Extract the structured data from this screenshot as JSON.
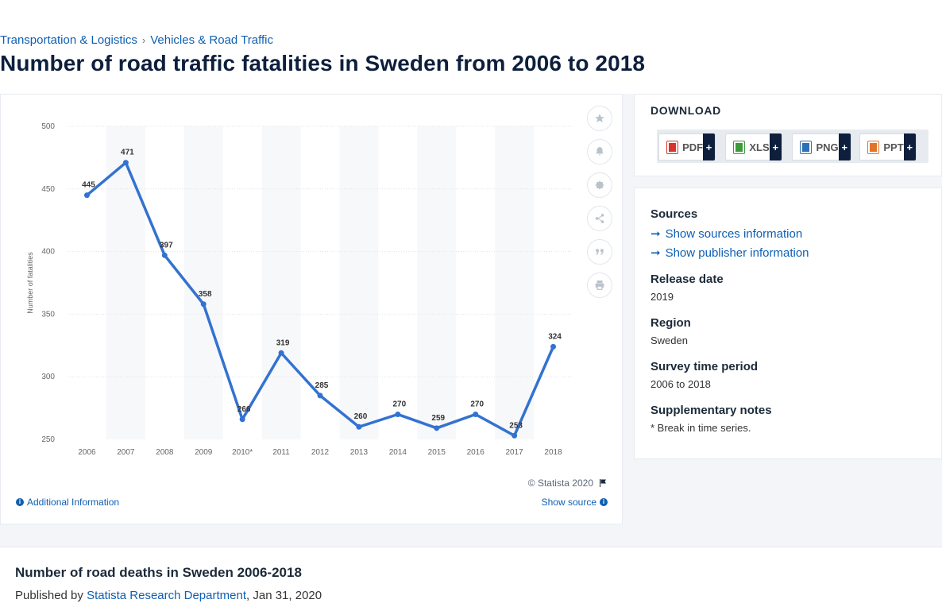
{
  "breadcrumb": {
    "items": [
      "Transportation & Logistics",
      "Vehicles & Road Traffic"
    ],
    "separator": "›"
  },
  "page_title": "Number of road traffic fatalities in Sweden from 2006 to 2018",
  "chart_data": {
    "type": "line",
    "title": "",
    "xlabel": "",
    "ylabel": "Number of fatalities",
    "categories": [
      "2006",
      "2007",
      "2008",
      "2009",
      "2010*",
      "2011",
      "2012",
      "2013",
      "2014",
      "2015",
      "2016",
      "2017",
      "2018"
    ],
    "series": [
      {
        "values": [
          445,
          471,
          397,
          358,
          266,
          319,
          285,
          260,
          270,
          259,
          270,
          253,
          324
        ]
      }
    ],
    "data_labels": [
      "445",
      "471",
      "397",
      "358",
      "266",
      "319",
      "285",
      "260",
      "270",
      "259",
      "270",
      "253",
      "324"
    ],
    "y_ticks": [
      "250",
      "300",
      "350",
      "400",
      "450",
      "500"
    ],
    "ylim": [
      250,
      500
    ],
    "grid": true,
    "color": "#3372d0"
  },
  "chart_footer": {
    "copyright": "© Statista 2020",
    "additional_info": "Additional Information",
    "show_source": "Show source"
  },
  "toolbar": {
    "icons": [
      "star-icon",
      "bell-icon",
      "gear-icon",
      "share-icon",
      "quote-icon",
      "print-icon"
    ]
  },
  "download": {
    "title": "DOWNLOAD",
    "buttons": [
      {
        "label": "PDF",
        "color": "#d9342b"
      },
      {
        "label": "XLS",
        "color": "#3d9a3a"
      },
      {
        "label": "PNG",
        "color": "#2e6fb7"
      },
      {
        "label": "PPT",
        "color": "#e0742a"
      }
    ],
    "plus": "+"
  },
  "meta": {
    "sources_heading": "Sources",
    "show_sources": "Show sources information",
    "show_publisher": "Show publisher information",
    "release_heading": "Release date",
    "release_value": "2019",
    "region_heading": "Region",
    "region_value": "Sweden",
    "survey_heading": "Survey time period",
    "survey_value": "2006 to 2018",
    "notes_heading": "Supplementary notes",
    "notes_value": "* Break in time series."
  },
  "bottom": {
    "title": "Number of road deaths in Sweden 2006-2018",
    "published_prefix": "Published by",
    "publisher": "Statista Research Department",
    "date": ", Jan 31, 2020"
  }
}
